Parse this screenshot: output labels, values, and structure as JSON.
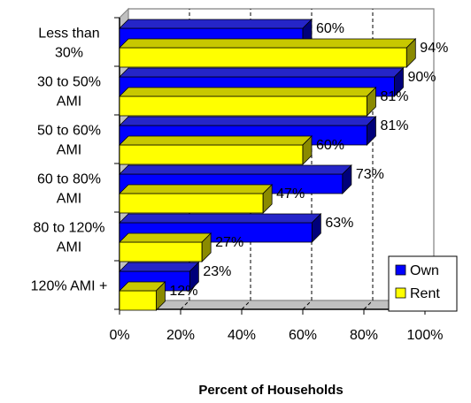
{
  "chart_data": {
    "type": "bar",
    "orientation": "horizontal",
    "categories": [
      [
        "Less than",
        "30%"
      ],
      [
        "30 to 50%",
        "AMI"
      ],
      [
        "50 to 60%",
        "AMI"
      ],
      [
        "60 to 80%",
        "AMI"
      ],
      [
        "80 to 120%",
        "AMI"
      ],
      [
        "120% AMI +"
      ]
    ],
    "series": [
      {
        "name": "Own",
        "values": [
          60,
          90,
          81,
          73,
          63,
          23
        ],
        "labels": [
          "60%",
          "90%",
          "81%",
          "73%",
          "63%",
          "23%"
        ],
        "color": "#0000ff",
        "side_color": "#00007a",
        "top_color": "#2525c8"
      },
      {
        "name": "Rent",
        "values": [
          94,
          81,
          60,
          47,
          27,
          12
        ],
        "labels": [
          "94%",
          "81%",
          "60%",
          "47%",
          "27%",
          "12%"
        ],
        "color": "#ffff00",
        "side_color": "#8a8a00",
        "top_color": "#c8c800"
      }
    ],
    "xlim": [
      0,
      100
    ],
    "xticks": [
      0,
      20,
      40,
      60,
      80,
      100
    ],
    "xtick_labels": [
      "0%",
      "20%",
      "40%",
      "60%",
      "80%",
      "100%"
    ],
    "xlabel": "Percent of Households",
    "ylabel": "",
    "title": "",
    "gridlines": "vertical dashed at 60% and 80%",
    "legend_position": "bottom-right",
    "three_d": true
  }
}
